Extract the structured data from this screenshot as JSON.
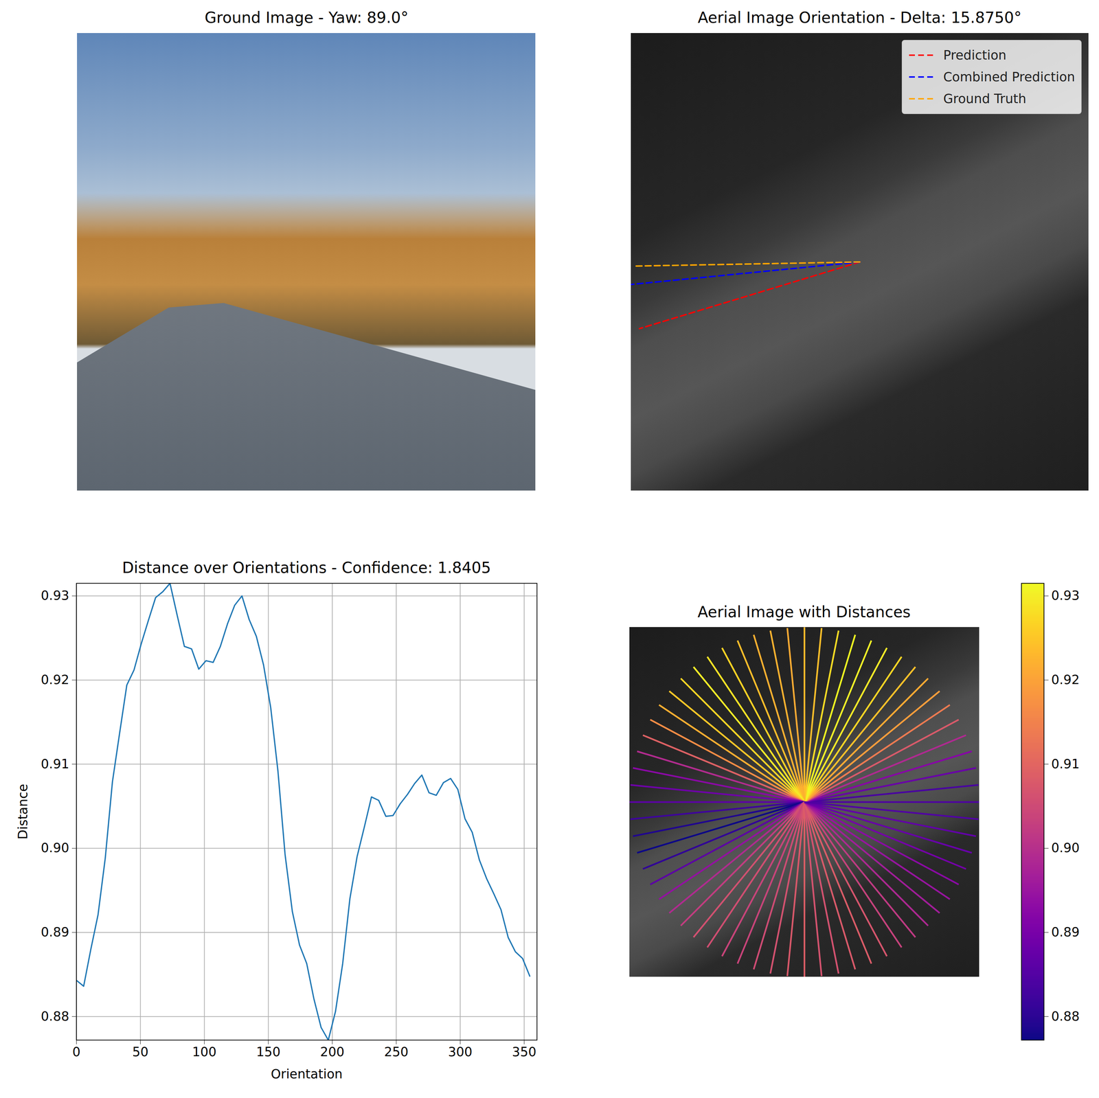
{
  "chart_data": [
    {
      "type": "image",
      "title": "Ground Image - Yaw: 89.0°"
    },
    {
      "type": "line",
      "title": "Aerial Image Orientation - Delta: 15.8750°",
      "xlim": [
        0,
        256
      ],
      "ylim": [
        256,
        0
      ],
      "tick_labels": false,
      "legend": "upper right",
      "series": [
        {
          "name": "Prediction",
          "color": "#ff0000",
          "line_style": "dashed",
          "x": [
            128,
            4.7
          ],
          "y": [
            128,
            165.3
          ]
        },
        {
          "name": "Combined Prediction",
          "color": "#0000ff",
          "line_style": "dashed",
          "x": [
            128,
            0
          ],
          "y": [
            128,
            140.6
          ]
        },
        {
          "name": "Ground Truth",
          "color": "#ffa500",
          "line_style": "dashed",
          "x": [
            128,
            2
          ],
          "y": [
            128,
            130.3
          ]
        }
      ]
    },
    {
      "type": "line",
      "title": "Distance over Orientations - Confidence: 1.8405",
      "x_label": "Orientation",
      "y_label": "Distance",
      "color": "#1f77b4",
      "grid": true,
      "xlim": [
        0,
        360
      ],
      "ylim": [
        0.8772,
        0.9315
      ],
      "xticks": [
        0,
        50,
        100,
        150,
        200,
        250,
        300,
        350
      ],
      "yticks": [
        0.88,
        0.89,
        {
          "value": 0.9,
          "label": "0.90"
        },
        0.91,
        0.92,
        0.93
      ],
      "x": [
        0,
        5.625,
        11.25,
        16.875,
        22.5,
        28.125,
        33.75,
        39.375,
        45,
        50.625,
        56.25,
        61.875,
        67.5,
        73.125,
        78.75,
        84.375,
        90,
        95.625,
        101.25,
        106.875,
        112.5,
        118.125,
        123.75,
        129.375,
        135,
        140.625,
        146.25,
        151.875,
        157.5,
        163.125,
        168.75,
        174.375,
        180,
        185.625,
        191.25,
        196.875,
        202.5,
        208.125,
        213.75,
        219.375,
        225,
        230.625,
        236.25,
        241.875,
        247.5,
        253.125,
        258.75,
        264.375,
        270,
        275.625,
        281.25,
        286.875,
        292.5,
        298.125,
        303.75,
        309.375,
        315,
        320.625,
        326.25,
        331.875,
        337.5,
        343.125,
        348.75,
        354.375
      ],
      "values": [
        0.8843,
        0.8836,
        0.888,
        0.8921,
        0.8988,
        0.9079,
        0.9137,
        0.9194,
        0.9212,
        0.9243,
        0.9271,
        0.9298,
        0.9305,
        0.9315,
        0.9277,
        0.924,
        0.9237,
        0.9213,
        0.9223,
        0.9221,
        0.924,
        0.9267,
        0.9289,
        0.93,
        0.9272,
        0.9252,
        0.9218,
        0.9167,
        0.9092,
        0.8992,
        0.8925,
        0.8885,
        0.8863,
        0.8821,
        0.8787,
        0.8772,
        0.8806,
        0.8863,
        0.894,
        0.899,
        0.9025,
        0.9061,
        0.9057,
        0.9038,
        0.9039,
        0.9053,
        0.9064,
        0.9077,
        0.9087,
        0.9066,
        0.9063,
        0.9078,
        0.9083,
        0.907,
        0.9035,
        0.9019,
        0.8986,
        0.8964,
        0.8946,
        0.8927,
        0.8894,
        0.8877,
        0.8869,
        0.8848
      ]
    },
    {
      "type": "radial",
      "title": "Aerial Image with Distances",
      "xlim": [
        0,
        256
      ],
      "ylim": [
        256,
        0
      ],
      "tick_labels": false,
      "color": "plasma",
      "color_range": [
        0.8772,
        0.9315
      ],
      "color_ticks": [
        0.88,
        0.89,
        {
          "value": 0.9,
          "label": "0.90"
        },
        0.91,
        0.92,
        0.93
      ],
      "x": [
        0,
        5.625,
        11.25,
        16.875,
        22.5,
        28.125,
        33.75,
        39.375,
        45,
        50.625,
        56.25,
        61.875,
        67.5,
        73.125,
        78.75,
        84.375,
        90,
        95.625,
        101.25,
        106.875,
        112.5,
        118.125,
        123.75,
        129.375,
        135,
        140.625,
        146.25,
        151.875,
        157.5,
        163.125,
        168.75,
        174.375,
        180,
        185.625,
        191.25,
        196.875,
        202.5,
        208.125,
        213.75,
        219.375,
        225,
        230.625,
        236.25,
        241.875,
        247.5,
        253.125,
        258.75,
        264.375,
        270,
        275.625,
        281.25,
        286.875,
        292.5,
        298.125,
        303.75,
        309.375,
        315,
        320.625,
        326.25,
        331.875,
        337.5,
        343.125,
        348.75,
        354.375
      ],
      "values": [
        0.8843,
        0.8836,
        0.888,
        0.8921,
        0.8988,
        0.9079,
        0.9137,
        0.9194,
        0.9212,
        0.9243,
        0.9271,
        0.9298,
        0.9305,
        0.9315,
        0.9277,
        0.924,
        0.9237,
        0.9213,
        0.9223,
        0.9221,
        0.924,
        0.9267,
        0.9289,
        0.93,
        0.9272,
        0.9252,
        0.9218,
        0.9167,
        0.9092,
        0.8992,
        0.8925,
        0.8885,
        0.8863,
        0.8821,
        0.8787,
        0.8772,
        0.8806,
        0.8863,
        0.894,
        0.899,
        0.9025,
        0.9061,
        0.9057,
        0.9038,
        0.9039,
        0.9053,
        0.9064,
        0.9077,
        0.9087,
        0.9066,
        0.9063,
        0.9078,
        0.9083,
        0.907,
        0.9035,
        0.9019,
        0.8986,
        0.8964,
        0.8946,
        0.8927,
        0.8894,
        0.8877,
        0.8869,
        0.8848
      ]
    }
  ]
}
